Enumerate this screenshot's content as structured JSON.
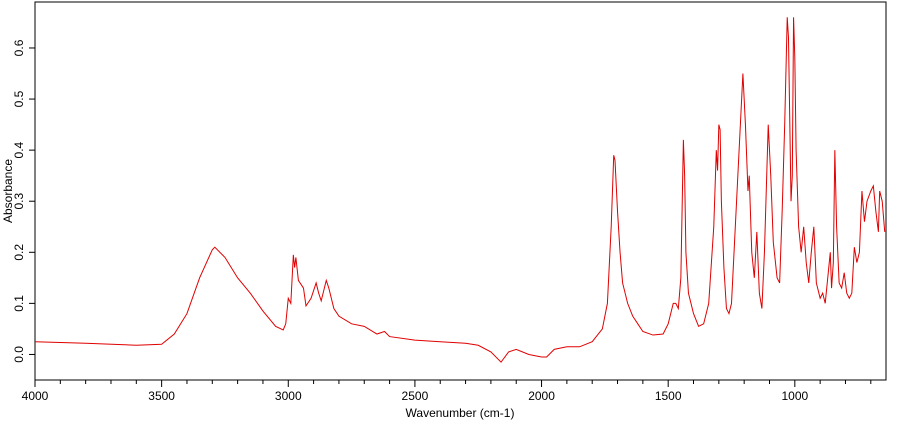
{
  "chart_data": {
    "type": "line",
    "x_label": "Wavenumber (cm-1)",
    "y_label": "Absorbance",
    "color": "#e00000",
    "xlim": [
      4000,
      640
    ],
    "ylim": [
      -0.05,
      0.69
    ],
    "xticks": [
      4000,
      3500,
      3000,
      2500,
      2000,
      1500,
      1000
    ],
    "xminorticks": [
      3900,
      3800,
      3700,
      3600,
      3400,
      3300,
      3200,
      3100,
      2900,
      2800,
      2700,
      2600,
      2400,
      2300,
      2200,
      2100,
      1900,
      1800,
      1700,
      1600,
      1400,
      1300,
      1200,
      1100,
      900,
      800,
      700
    ],
    "yticks": [
      {
        "value": 0,
        "label": "0.0"
      },
      0.1,
      0.2,
      0.3,
      0.4,
      0.5,
      0.6
    ],
    "x": [
      4000,
      3800,
      3600,
      3500,
      3450,
      3400,
      3350,
      3300,
      3290,
      3250,
      3200,
      3150,
      3100,
      3050,
      3020,
      3010,
      3000,
      2990,
      2980,
      2975,
      2970,
      2960,
      2940,
      2930,
      2910,
      2890,
      2880,
      2870,
      2850,
      2840,
      2820,
      2800,
      2750,
      2700,
      2650,
      2620,
      2600,
      2500,
      2400,
      2300,
      2250,
      2200,
      2170,
      2160,
      2130,
      2100,
      2050,
      2000,
      1980,
      1950,
      1900,
      1850,
      1800,
      1760,
      1740,
      1725,
      1715,
      1710,
      1700,
      1690,
      1680,
      1660,
      1640,
      1620,
      1600,
      1560,
      1520,
      1500,
      1480,
      1470,
      1460,
      1450,
      1440,
      1435,
      1430,
      1420,
      1400,
      1380,
      1360,
      1340,
      1320,
      1310,
      1305,
      1300,
      1295,
      1290,
      1280,
      1270,
      1260,
      1250,
      1230,
      1215,
      1205,
      1195,
      1185,
      1180,
      1170,
      1160,
      1150,
      1140,
      1130,
      1120,
      1105,
      1095,
      1085,
      1070,
      1060,
      1050,
      1040,
      1030,
      1025,
      1015,
      1010,
      1005,
      1000,
      995,
      985,
      975,
      965,
      955,
      945,
      935,
      925,
      915,
      900,
      890,
      880,
      870,
      860,
      855,
      848,
      842,
      835,
      825,
      815,
      805,
      795,
      785,
      775,
      765,
      755,
      745,
      735,
      725,
      715,
      700,
      690,
      680,
      670,
      665,
      655,
      645
    ],
    "values": [
      0.025,
      0.022,
      0.018,
      0.02,
      0.04,
      0.08,
      0.15,
      0.205,
      0.21,
      0.19,
      0.15,
      0.12,
      0.085,
      0.055,
      0.048,
      0.06,
      0.11,
      0.1,
      0.195,
      0.17,
      0.19,
      0.145,
      0.13,
      0.095,
      0.11,
      0.14,
      0.12,
      0.105,
      0.145,
      0.13,
      0.09,
      0.075,
      0.06,
      0.055,
      0.04,
      0.045,
      0.035,
      0.028,
      0.025,
      0.022,
      0.018,
      0.005,
      -0.01,
      -0.015,
      0.005,
      0.01,
      0.0,
      -0.005,
      -0.005,
      0.01,
      0.015,
      0.015,
      0.025,
      0.05,
      0.1,
      0.25,
      0.39,
      0.38,
      0.28,
      0.2,
      0.14,
      0.1,
      0.075,
      0.06,
      0.045,
      0.038,
      0.04,
      0.06,
      0.1,
      0.1,
      0.09,
      0.15,
      0.42,
      0.35,
      0.2,
      0.12,
      0.08,
      0.055,
      0.06,
      0.1,
      0.25,
      0.4,
      0.36,
      0.45,
      0.44,
      0.3,
      0.17,
      0.09,
      0.08,
      0.1,
      0.3,
      0.45,
      0.55,
      0.45,
      0.32,
      0.35,
      0.2,
      0.15,
      0.24,
      0.12,
      0.09,
      0.2,
      0.45,
      0.35,
      0.22,
      0.15,
      0.14,
      0.28,
      0.45,
      0.66,
      0.62,
      0.3,
      0.35,
      0.66,
      0.58,
      0.4,
      0.25,
      0.2,
      0.25,
      0.18,
      0.14,
      0.2,
      0.25,
      0.14,
      0.11,
      0.12,
      0.1,
      0.15,
      0.2,
      0.13,
      0.18,
      0.4,
      0.25,
      0.14,
      0.13,
      0.16,
      0.12,
      0.11,
      0.12,
      0.21,
      0.18,
      0.2,
      0.32,
      0.26,
      0.3,
      0.32,
      0.33,
      0.28,
      0.24,
      0.32,
      0.3,
      0.24
    ]
  }
}
